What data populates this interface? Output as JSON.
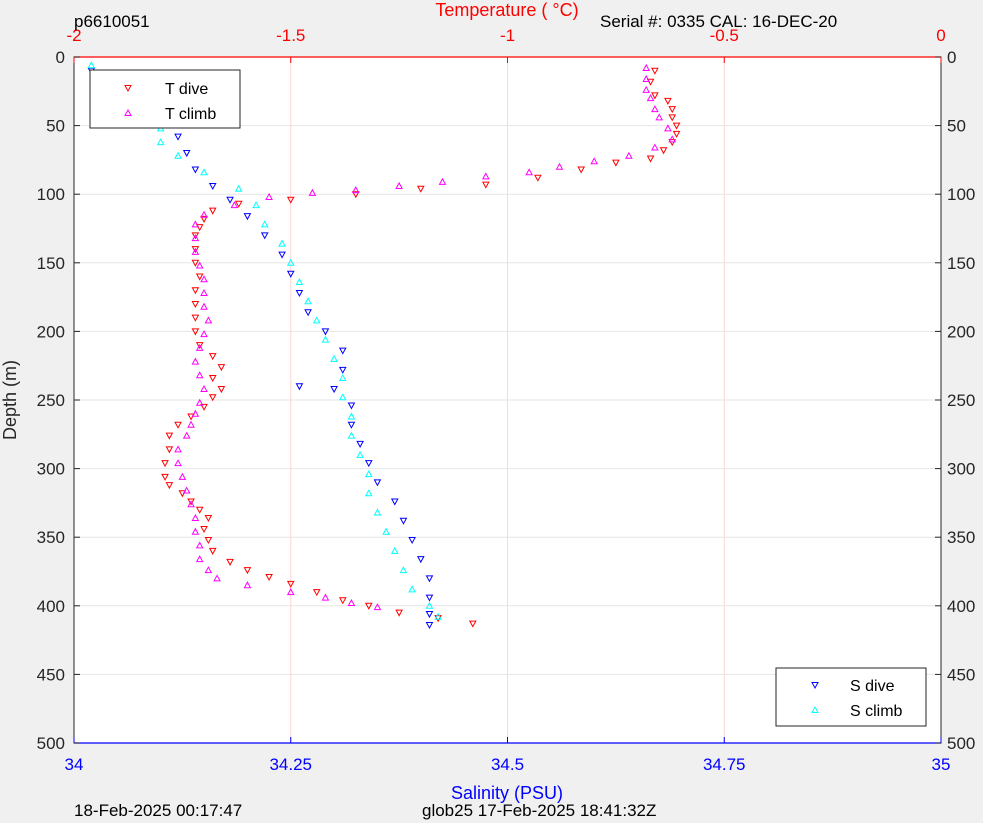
{
  "header": {
    "profile_id": "p6610051",
    "serial": "Serial #: 0335  CAL: 16-DEC-20"
  },
  "footer": {
    "timestamp": "18-Feb-2025 00:17:47",
    "mission": "glob25 17-Feb-2025 18:41:32Z"
  },
  "colors": {
    "t_dive": "#ff0000",
    "t_climb": "#ff00ff",
    "s_dive": "#0000ff",
    "s_climb": "#00ffff",
    "temp_axis": "#ff0000",
    "sal_axis": "#0000ff"
  },
  "chart_data": {
    "type": "scatter",
    "ylabel": "Depth (m)",
    "ylim": [
      0,
      500
    ],
    "ytick_labels": [
      "0",
      "50",
      "100",
      "150",
      "200",
      "250",
      "300",
      "350",
      "400",
      "450",
      "500"
    ],
    "y_reversed": true,
    "temperature_axis": {
      "label": "Temperature (    °C)",
      "position": "top",
      "range": [
        -2,
        0
      ],
      "tick_labels": [
        "-2",
        "-1.5",
        "-1",
        "-0.5",
        "0"
      ]
    },
    "salinity_axis": {
      "label": "Salinity (PSU)",
      "position": "bottom",
      "range": [
        34,
        35
      ],
      "tick_labels": [
        "34",
        "34.25",
        "34.5",
        "34.75",
        "35"
      ]
    },
    "grid": "vertical lines at temperature ticks, horizontal lines at depth ticks",
    "legends": [
      {
        "placement": "top-left",
        "entries": [
          "T dive",
          "T climb"
        ]
      },
      {
        "placement": "bottom-right",
        "entries": [
          "S dive",
          "S climb"
        ]
      }
    ],
    "series": [
      {
        "name": "T dive",
        "axis": "temperature",
        "marker": "triangle-down",
        "points": [
          [
            -0.66,
            10
          ],
          [
            -0.67,
            18
          ],
          [
            -0.66,
            28
          ],
          [
            -0.63,
            32
          ],
          [
            -0.62,
            38
          ],
          [
            -0.62,
            44
          ],
          [
            -0.61,
            50
          ],
          [
            -0.61,
            56
          ],
          [
            -0.62,
            62
          ],
          [
            -0.64,
            68
          ],
          [
            -0.67,
            74
          ],
          [
            -0.75,
            77
          ],
          [
            -0.83,
            82
          ],
          [
            -0.93,
            88
          ],
          [
            -1.05,
            93
          ],
          [
            -1.2,
            96
          ],
          [
            -1.35,
            100
          ],
          [
            -1.5,
            104
          ],
          [
            -1.62,
            107
          ],
          [
            -1.68,
            112
          ],
          [
            -1.7,
            118
          ],
          [
            -1.71,
            124
          ],
          [
            -1.72,
            130
          ],
          [
            -1.72,
            140
          ],
          [
            -1.72,
            150
          ],
          [
            -1.71,
            160
          ],
          [
            -1.72,
            170
          ],
          [
            -1.72,
            180
          ],
          [
            -1.72,
            190
          ],
          [
            -1.72,
            200
          ],
          [
            -1.71,
            210
          ],
          [
            -1.68,
            218
          ],
          [
            -1.66,
            226
          ],
          [
            -1.68,
            234
          ],
          [
            -1.66,
            242
          ],
          [
            -1.68,
            248
          ],
          [
            -1.7,
            255
          ],
          [
            -1.73,
            262
          ],
          [
            -1.76,
            268
          ],
          [
            -1.78,
            276
          ],
          [
            -1.78,
            286
          ],
          [
            -1.79,
            296
          ],
          [
            -1.79,
            306
          ],
          [
            -1.78,
            312
          ],
          [
            -1.75,
            318
          ],
          [
            -1.73,
            324
          ],
          [
            -1.71,
            330
          ],
          [
            -1.69,
            336
          ],
          [
            -1.7,
            344
          ],
          [
            -1.69,
            352
          ],
          [
            -1.68,
            360
          ],
          [
            -1.64,
            368
          ],
          [
            -1.6,
            374
          ],
          [
            -1.55,
            379
          ],
          [
            -1.5,
            384
          ],
          [
            -1.44,
            390
          ],
          [
            -1.38,
            396
          ],
          [
            -1.32,
            400
          ],
          [
            -1.25,
            405
          ],
          [
            -1.16,
            409
          ],
          [
            -1.08,
            413
          ]
        ]
      },
      {
        "name": "T climb",
        "axis": "temperature",
        "marker": "triangle-up",
        "points": [
          [
            -0.68,
            8
          ],
          [
            -0.68,
            16
          ],
          [
            -0.68,
            24
          ],
          [
            -0.67,
            30
          ],
          [
            -0.66,
            38
          ],
          [
            -0.65,
            44
          ],
          [
            -0.63,
            52
          ],
          [
            -0.62,
            60
          ],
          [
            -0.66,
            66
          ],
          [
            -0.72,
            72
          ],
          [
            -0.8,
            76
          ],
          [
            -0.88,
            80
          ],
          [
            -0.95,
            84
          ],
          [
            -1.05,
            87
          ],
          [
            -1.15,
            91
          ],
          [
            -1.25,
            94
          ],
          [
            -1.35,
            97
          ],
          [
            -1.45,
            99
          ],
          [
            -1.55,
            102
          ],
          [
            -1.63,
            108
          ],
          [
            -1.7,
            115
          ],
          [
            -1.72,
            122
          ],
          [
            -1.72,
            132
          ],
          [
            -1.72,
            142
          ],
          [
            -1.71,
            152
          ],
          [
            -1.7,
            162
          ],
          [
            -1.7,
            172
          ],
          [
            -1.7,
            182
          ],
          [
            -1.69,
            192
          ],
          [
            -1.7,
            202
          ],
          [
            -1.71,
            212
          ],
          [
            -1.72,
            222
          ],
          [
            -1.71,
            232
          ],
          [
            -1.7,
            242
          ],
          [
            -1.71,
            252
          ],
          [
            -1.72,
            260
          ],
          [
            -1.73,
            268
          ],
          [
            -1.74,
            276
          ],
          [
            -1.76,
            286
          ],
          [
            -1.76,
            296
          ],
          [
            -1.75,
            306
          ],
          [
            -1.74,
            316
          ],
          [
            -1.73,
            326
          ],
          [
            -1.72,
            336
          ],
          [
            -1.72,
            346
          ],
          [
            -1.71,
            356
          ],
          [
            -1.71,
            366
          ],
          [
            -1.69,
            374
          ],
          [
            -1.67,
            380
          ],
          [
            -1.6,
            385
          ],
          [
            -1.5,
            390
          ],
          [
            -1.42,
            394
          ],
          [
            -1.36,
            398
          ],
          [
            -1.3,
            401
          ]
        ]
      },
      {
        "name": "S dive",
        "axis": "salinity",
        "marker": "triangle-down",
        "points": [
          [
            34.02,
            10
          ],
          [
            34.06,
            22
          ],
          [
            34.08,
            34
          ],
          [
            34.1,
            46
          ],
          [
            34.12,
            58
          ],
          [
            34.13,
            70
          ],
          [
            34.14,
            82
          ],
          [
            34.16,
            94
          ],
          [
            34.18,
            104
          ],
          [
            34.2,
            116
          ],
          [
            34.22,
            130
          ],
          [
            34.24,
            144
          ],
          [
            34.25,
            158
          ],
          [
            34.26,
            172
          ],
          [
            34.27,
            186
          ],
          [
            34.29,
            200
          ],
          [
            34.31,
            214
          ],
          [
            34.31,
            228
          ],
          [
            34.3,
            242
          ],
          [
            34.26,
            240
          ],
          [
            34.32,
            254
          ],
          [
            34.32,
            268
          ],
          [
            34.33,
            282
          ],
          [
            34.34,
            296
          ],
          [
            34.35,
            310
          ],
          [
            34.37,
            324
          ],
          [
            34.38,
            338
          ],
          [
            34.39,
            352
          ],
          [
            34.4,
            366
          ],
          [
            34.41,
            380
          ],
          [
            34.41,
            394
          ],
          [
            34.41,
            406
          ],
          [
            34.41,
            414
          ]
        ]
      },
      {
        "name": "S climb",
        "axis": "salinity",
        "marker": "triangle-up",
        "points": [
          [
            34.02,
            6
          ],
          [
            34.03,
            16
          ],
          [
            34.03,
            26
          ],
          [
            34.05,
            36
          ],
          [
            34.08,
            44
          ],
          [
            34.1,
            52
          ],
          [
            34.1,
            62
          ],
          [
            34.12,
            72
          ],
          [
            34.15,
            84
          ],
          [
            34.19,
            96
          ],
          [
            34.21,
            108
          ],
          [
            34.22,
            122
          ],
          [
            34.24,
            136
          ],
          [
            34.25,
            150
          ],
          [
            34.26,
            164
          ],
          [
            34.27,
            178
          ],
          [
            34.28,
            192
          ],
          [
            34.29,
            206
          ],
          [
            34.3,
            220
          ],
          [
            34.31,
            234
          ],
          [
            34.31,
            248
          ],
          [
            34.32,
            262
          ],
          [
            34.32,
            276
          ],
          [
            34.33,
            290
          ],
          [
            34.34,
            304
          ],
          [
            34.34,
            318
          ],
          [
            34.35,
            332
          ],
          [
            34.36,
            346
          ],
          [
            34.37,
            360
          ],
          [
            34.38,
            374
          ],
          [
            34.39,
            388
          ],
          [
            34.41,
            400
          ],
          [
            34.42,
            408
          ]
        ]
      }
    ]
  }
}
